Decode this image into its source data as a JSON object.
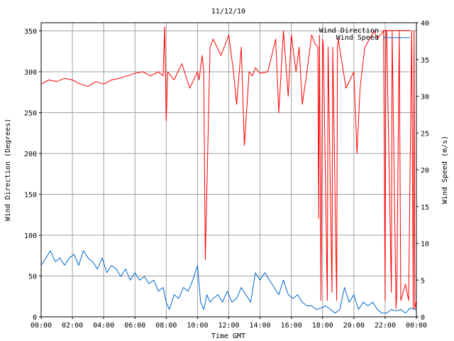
{
  "chart_data": {
    "type": "line",
    "title": "11/12/10",
    "xlabel": "Time GMT",
    "ylabel_left": "Wind Direction (Degrees)",
    "ylabel_right": "Wind Speed (m/s)",
    "x_ticks": [
      "00:00",
      "02:00",
      "04:00",
      "06:00",
      "08:00",
      "10:00",
      "12:00",
      "14:00",
      "16:00",
      "18:00",
      "20:00",
      "22:00",
      "00:00"
    ],
    "x_range_hours": [
      0,
      24
    ],
    "ylim_left": [
      0,
      360
    ],
    "ylim_right": [
      0,
      40
    ],
    "yticks_left": [
      0,
      50,
      100,
      150,
      200,
      250,
      300,
      350
    ],
    "yticks_right": [
      0,
      5,
      10,
      15,
      20,
      25,
      30,
      35,
      40
    ],
    "grid": true,
    "legend_position": "top-right",
    "series": [
      {
        "name": "Wind Direction",
        "axis": "left",
        "color": "#ff0000",
        "x": [
          0,
          0.5,
          1,
          1.5,
          2,
          2.5,
          3,
          3.5,
          4,
          4.5,
          5,
          5.5,
          6,
          6.5,
          7,
          7.5,
          7.8,
          7.9,
          8.0,
          8.1,
          8.5,
          9,
          9.5,
          10,
          10.1,
          10.3,
          10.4,
          10.5,
          10.8,
          11,
          11.5,
          12,
          12.3,
          12.5,
          12.8,
          13,
          13.3,
          13.5,
          13.7,
          14,
          14.5,
          15,
          15.2,
          15.5,
          15.8,
          16,
          16.3,
          16.5,
          16.7,
          17,
          17.3,
          17.5,
          17.7,
          17.75,
          17.8,
          17.9,
          18.0,
          18.05,
          18.3,
          18.35,
          18.6,
          18.65,
          18.9,
          18.95,
          19.0,
          19.5,
          20,
          20.2,
          20.4,
          20.7,
          21,
          21.3,
          21.5,
          21.9,
          22.0,
          22.05,
          22.1,
          22.4,
          22.45,
          22.7,
          22.75,
          22.9,
          23.0,
          23.3,
          23.5,
          23.7,
          23.8,
          23.85,
          23.9,
          24
        ],
        "values": [
          285,
          290,
          288,
          292,
          290,
          285,
          282,
          288,
          285,
          290,
          292,
          295,
          298,
          300,
          295,
          300,
          295,
          355,
          240,
          300,
          290,
          310,
          280,
          300,
          290,
          320,
          300,
          70,
          330,
          340,
          320,
          345,
          300,
          260,
          330,
          210,
          300,
          295,
          305,
          298,
          300,
          340,
          250,
          350,
          270,
          345,
          300,
          330,
          260,
          300,
          345,
          335,
          330,
          120,
          345,
          20,
          340,
          330,
          20,
          330,
          30,
          330,
          20,
          330,
          340,
          280,
          300,
          200,
          280,
          330,
          340,
          350,
          340,
          350,
          20,
          350,
          350,
          30,
          350,
          10,
          30,
          350,
          20,
          40,
          20,
          350,
          10,
          350,
          10,
          20
        ]
      },
      {
        "name": "Wind Speed",
        "axis": "right",
        "color": "#0066cc",
        "x": [
          0,
          0.3,
          0.6,
          0.9,
          1.2,
          1.5,
          1.8,
          2.1,
          2.4,
          2.7,
          3,
          3.3,
          3.6,
          3.9,
          4.2,
          4.5,
          4.8,
          5.1,
          5.4,
          5.7,
          6,
          6.3,
          6.6,
          6.9,
          7.2,
          7.5,
          7.8,
          8,
          8.2,
          8.5,
          8.8,
          9.1,
          9.4,
          9.7,
          10,
          10.2,
          10.4,
          10.6,
          10.8,
          11,
          11.3,
          11.6,
          11.9,
          12.2,
          12.5,
          12.8,
          13.1,
          13.4,
          13.7,
          14,
          14.3,
          14.6,
          14.9,
          15.2,
          15.5,
          15.8,
          16.1,
          16.4,
          16.7,
          17,
          17.3,
          17.6,
          17.9,
          18.2,
          18.5,
          18.8,
          19.1,
          19.4,
          19.7,
          20,
          20.3,
          20.6,
          20.9,
          21.2,
          21.5,
          21.8,
          22.1,
          22.4,
          22.7,
          23,
          23.3,
          23.6,
          23.9,
          24
        ],
        "values": [
          7,
          8,
          9,
          7.5,
          8,
          7,
          8,
          8.5,
          7,
          9,
          8,
          7.5,
          6.5,
          8,
          6,
          7,
          6.5,
          5.5,
          6.5,
          5,
          6,
          5,
          5.5,
          4.5,
          5,
          3.5,
          4,
          2,
          1,
          3,
          2.5,
          4,
          3.5,
          5,
          7,
          2,
          1,
          3,
          2,
          2.5,
          3,
          2,
          3.5,
          2,
          2.5,
          4,
          3,
          2,
          6,
          5,
          6,
          5,
          4,
          3,
          5,
          3,
          2.5,
          3,
          2,
          1.5,
          1.5,
          1,
          1.2,
          1.5,
          1,
          0.5,
          1,
          4,
          2,
          3,
          1,
          2,
          1.5,
          2,
          1,
          0.5,
          0.5,
          1,
          0.8,
          1,
          0.5,
          1.2,
          1,
          1
        ]
      }
    ]
  }
}
